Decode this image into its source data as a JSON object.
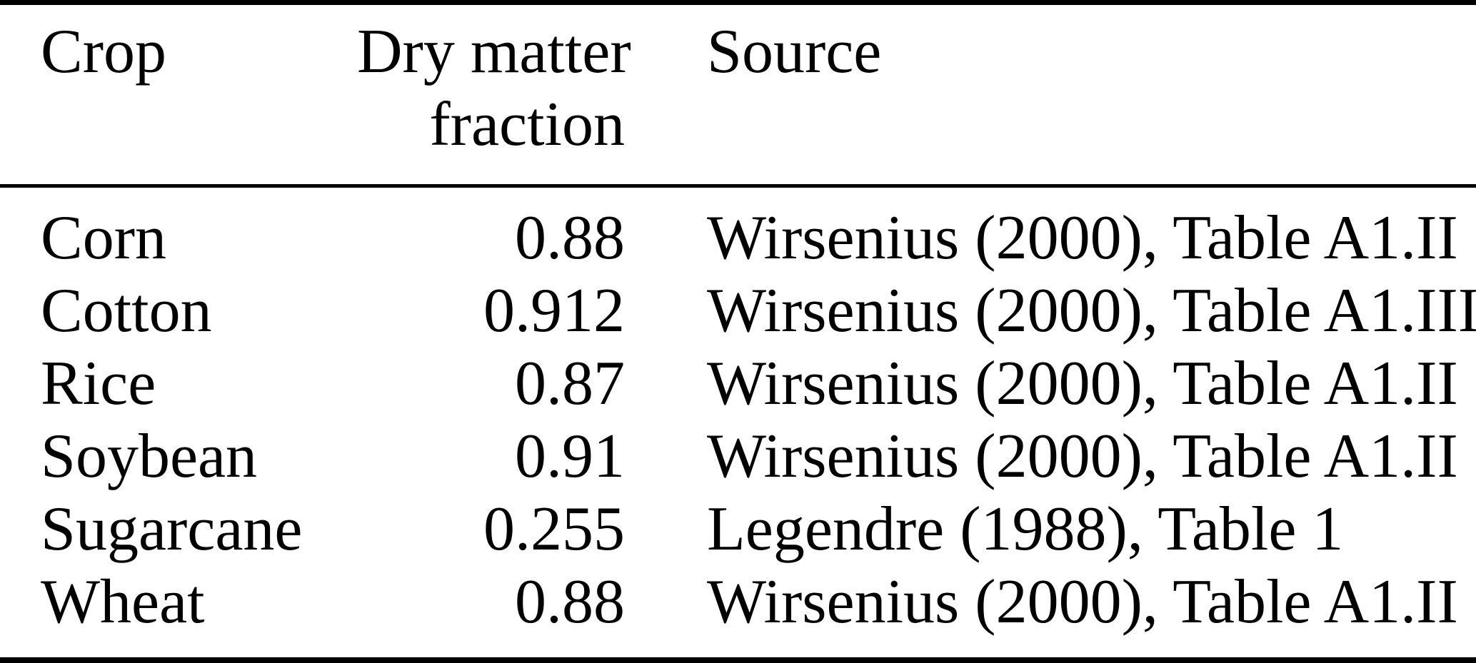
{
  "table": {
    "header": {
      "crop": "Crop",
      "dry_matter_line1": "Dry matter",
      "dry_matter_line2": "fraction",
      "source": "Source"
    },
    "rows": [
      {
        "crop": "Corn",
        "dry_matter_fraction": "0.88",
        "source": "Wirsenius (2000), Table A1.II"
      },
      {
        "crop": "Cotton",
        "dry_matter_fraction": "0.912",
        "source": "Wirsenius (2000), Table A1.III"
      },
      {
        "crop": "Rice",
        "dry_matter_fraction": "0.87",
        "source": "Wirsenius (2000), Table A1.II"
      },
      {
        "crop": "Soybean",
        "dry_matter_fraction": "0.91",
        "source": "Wirsenius (2000), Table A1.II"
      },
      {
        "crop": "Sugarcane",
        "dry_matter_fraction": "0.255",
        "source": "Legendre (1988), Table 1"
      },
      {
        "crop": "Wheat",
        "dry_matter_fraction": "0.88",
        "source": "Wirsenius (2000), Table A1.II"
      }
    ],
    "colors": {
      "text": "#000000",
      "background": "#ffffff",
      "rule": "#000000"
    }
  }
}
